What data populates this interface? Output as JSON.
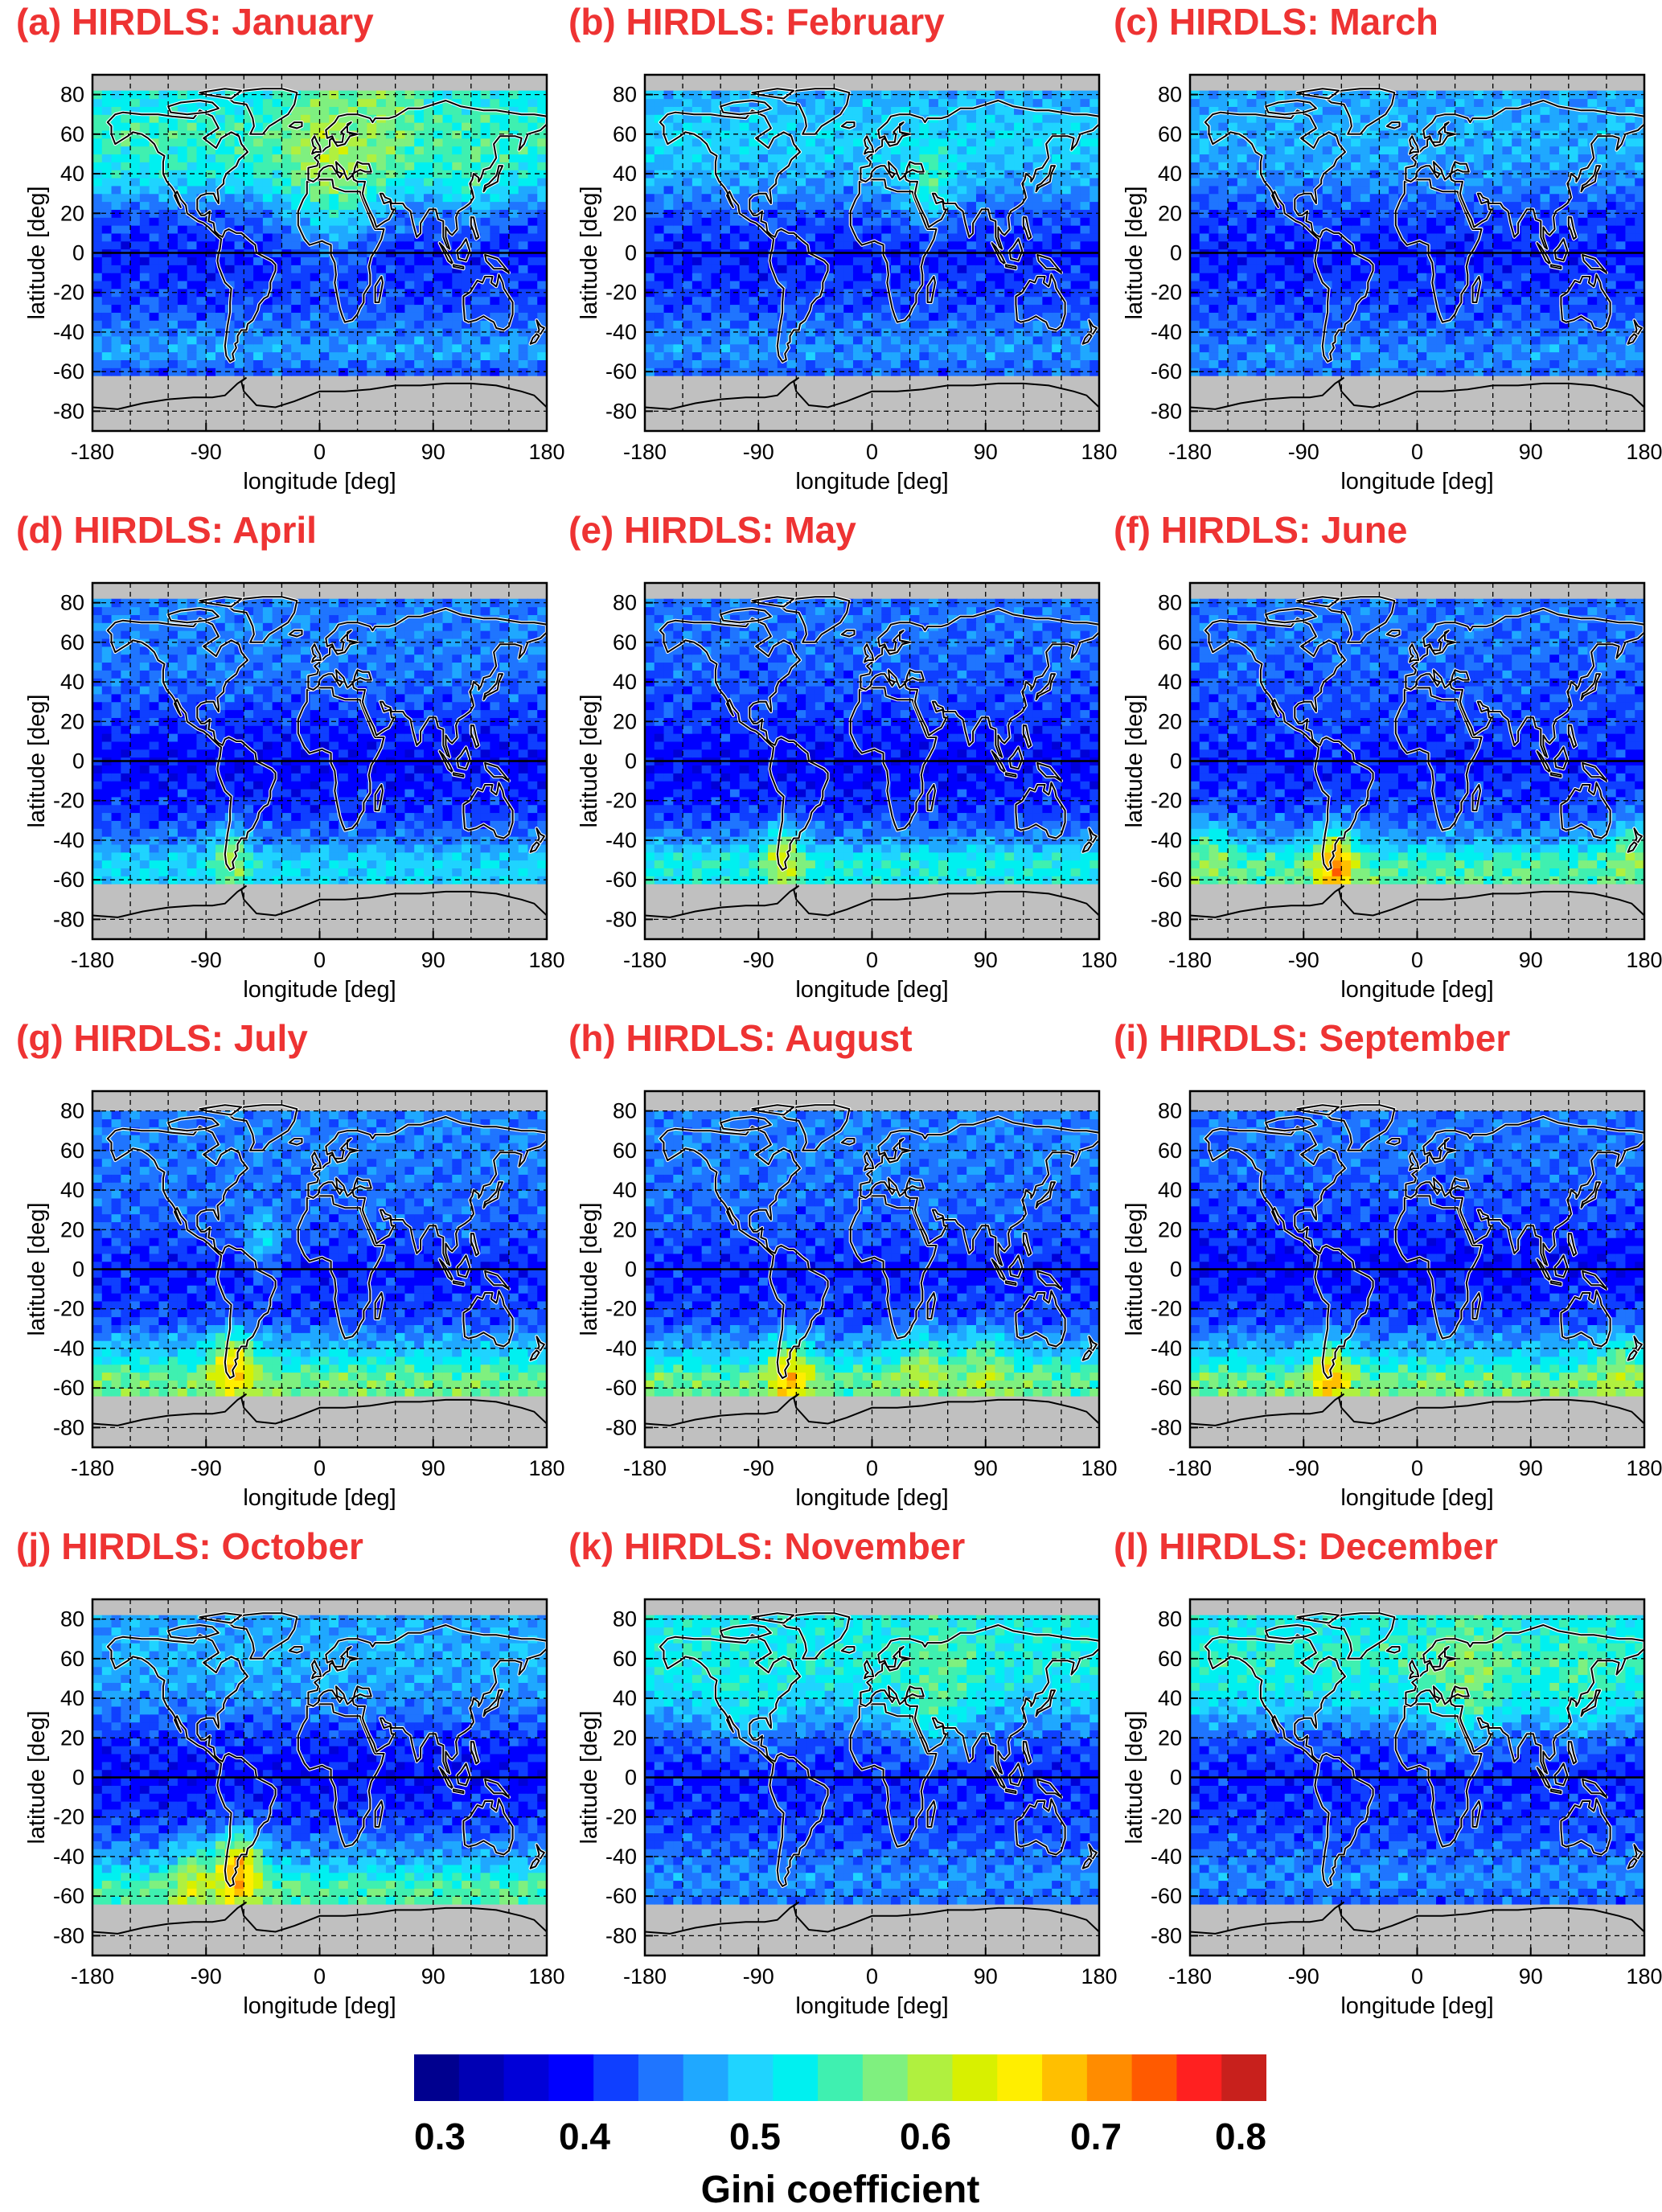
{
  "chart_data": {
    "type": "heatmap",
    "product": "HIRDLS",
    "xlabel": "longitude [deg]",
    "ylabel": "latitude [deg]",
    "xlim": [
      -180,
      180
    ],
    "ylim": [
      -90,
      90
    ],
    "xticks": [
      "-180",
      "-90",
      "0",
      "90",
      "180"
    ],
    "yticks": [
      "80",
      "60",
      "40",
      "20",
      "0",
      "-20",
      "-40",
      "-60",
      "-80"
    ],
    "grid": true,
    "no_data_color": "#c0c0c0",
    "colorbar": {
      "label": "Gini coefficient",
      "min": 0.3,
      "max": 0.8,
      "tick_labels": [
        "0.3",
        "0.4",
        "0.5",
        "0.6",
        "0.7",
        "0.8"
      ],
      "colors": [
        "#00008f",
        "#0000b4",
        "#0000d8",
        "#0000ff",
        "#0f3fff",
        "#1f75ff",
        "#1fa8ff",
        "#1fd4ff",
        "#00f0f0",
        "#3ff0b0",
        "#7ff07f",
        "#b0f03f",
        "#d8f000",
        "#ffee00",
        "#ffbf00",
        "#ff8c00",
        "#ff5a00",
        "#ff2020",
        "#c8201c"
      ]
    },
    "panels": [
      {
        "title": "(a) HIRDLS: January",
        "month": "January",
        "valid_lat": [
          -62,
          82
        ],
        "bands": [
          [
            -62,
            0.42
          ],
          [
            -50,
            0.47
          ],
          [
            -40,
            0.45
          ],
          [
            -25,
            0.42
          ],
          [
            0,
            0.4
          ],
          [
            20,
            0.43
          ],
          [
            40,
            0.52
          ],
          [
            60,
            0.55
          ],
          [
            75,
            0.52
          ]
        ],
        "hotspots": [
          [
            10,
            52,
            0.6,
            28
          ],
          [
            50,
            70,
            0.58,
            20
          ],
          [
            120,
            52,
            0.55,
            20
          ]
        ]
      },
      {
        "title": "(b) HIRDLS: February",
        "month": "February",
        "valid_lat": [
          -62,
          82
        ],
        "bands": [
          [
            -62,
            0.43
          ],
          [
            -50,
            0.46
          ],
          [
            -40,
            0.45
          ],
          [
            -25,
            0.42
          ],
          [
            0,
            0.4
          ],
          [
            20,
            0.43
          ],
          [
            40,
            0.48
          ],
          [
            60,
            0.5
          ],
          [
            75,
            0.48
          ]
        ],
        "hotspots": [
          [
            45,
            38,
            0.55,
            14
          ]
        ]
      },
      {
        "title": "(c) HIRDLS: March",
        "month": "March",
        "valid_lat": [
          -62,
          82
        ],
        "bands": [
          [
            -62,
            0.44
          ],
          [
            -50,
            0.46
          ],
          [
            -40,
            0.44
          ],
          [
            -25,
            0.42
          ],
          [
            0,
            0.4
          ],
          [
            20,
            0.42
          ],
          [
            40,
            0.46
          ],
          [
            60,
            0.48
          ],
          [
            75,
            0.47
          ]
        ],
        "hotspots": []
      },
      {
        "title": "(d) HIRDLS: April",
        "month": "April",
        "valid_lat": [
          -62,
          82
        ],
        "bands": [
          [
            -62,
            0.5
          ],
          [
            -50,
            0.5
          ],
          [
            -40,
            0.45
          ],
          [
            -25,
            0.41
          ],
          [
            0,
            0.39
          ],
          [
            20,
            0.41
          ],
          [
            40,
            0.44
          ],
          [
            60,
            0.45
          ],
          [
            75,
            0.45
          ]
        ],
        "hotspots": [
          [
            -70,
            -50,
            0.6,
            10
          ]
        ]
      },
      {
        "title": "(e) HIRDLS: May",
        "month": "May",
        "valid_lat": [
          -62,
          82
        ],
        "bands": [
          [
            -62,
            0.52
          ],
          [
            -50,
            0.53
          ],
          [
            -40,
            0.46
          ],
          [
            -25,
            0.41
          ],
          [
            0,
            0.39
          ],
          [
            20,
            0.41
          ],
          [
            40,
            0.43
          ],
          [
            60,
            0.44
          ],
          [
            75,
            0.44
          ]
        ],
        "hotspots": [
          [
            -70,
            -50,
            0.63,
            11
          ]
        ]
      },
      {
        "title": "(f) HIRDLS: June",
        "month": "June",
        "valid_lat": [
          -62,
          82
        ],
        "bands": [
          [
            -62,
            0.56
          ],
          [
            -50,
            0.55
          ],
          [
            -40,
            0.47
          ],
          [
            -25,
            0.42
          ],
          [
            0,
            0.4
          ],
          [
            20,
            0.42
          ],
          [
            40,
            0.43
          ],
          [
            60,
            0.44
          ],
          [
            75,
            0.44
          ]
        ],
        "hotspots": [
          [
            -65,
            -52,
            0.72,
            11
          ],
          [
            -165,
            -53,
            0.58,
            14
          ],
          [
            170,
            -52,
            0.58,
            14
          ]
        ]
      },
      {
        "title": "(g) HIRDLS: July",
        "month": "July",
        "valid_lat": [
          -64,
          80
        ],
        "bands": [
          [
            -64,
            0.57
          ],
          [
            -55,
            0.57
          ],
          [
            -42,
            0.5
          ],
          [
            -25,
            0.42
          ],
          [
            0,
            0.4
          ],
          [
            20,
            0.43
          ],
          [
            40,
            0.44
          ],
          [
            60,
            0.45
          ],
          [
            75,
            0.45
          ]
        ],
        "hotspots": [
          [
            -68,
            -50,
            0.68,
            12
          ],
          [
            -45,
            15,
            0.5,
            10
          ]
        ]
      },
      {
        "title": "(h) HIRDLS: August",
        "month": "August",
        "valid_lat": [
          -64,
          80
        ],
        "bands": [
          [
            -64,
            0.56
          ],
          [
            -55,
            0.57
          ],
          [
            -42,
            0.49
          ],
          [
            -25,
            0.42
          ],
          [
            0,
            0.4
          ],
          [
            20,
            0.43
          ],
          [
            40,
            0.44
          ],
          [
            60,
            0.45
          ],
          [
            75,
            0.45
          ]
        ],
        "hotspots": [
          [
            -65,
            -55,
            0.68,
            12
          ],
          [
            40,
            -55,
            0.6,
            14
          ],
          [
            90,
            -55,
            0.6,
            14
          ]
        ]
      },
      {
        "title": "(i) HIRDLS: September",
        "month": "September",
        "valid_lat": [
          -64,
          80
        ],
        "bands": [
          [
            -64,
            0.57
          ],
          [
            -55,
            0.57
          ],
          [
            -42,
            0.49
          ],
          [
            -25,
            0.42
          ],
          [
            0,
            0.39
          ],
          [
            20,
            0.41
          ],
          [
            40,
            0.43
          ],
          [
            60,
            0.44
          ],
          [
            75,
            0.44
          ]
        ],
        "hotspots": [
          [
            -68,
            -55,
            0.68,
            11
          ],
          [
            160,
            -57,
            0.6,
            14
          ]
        ]
      },
      {
        "title": "(j) HIRDLS: October",
        "month": "October",
        "valid_lat": [
          -64,
          82
        ],
        "bands": [
          [
            -64,
            0.55
          ],
          [
            -55,
            0.56
          ],
          [
            -42,
            0.48
          ],
          [
            -25,
            0.42
          ],
          [
            0,
            0.39
          ],
          [
            20,
            0.41
          ],
          [
            40,
            0.46
          ],
          [
            60,
            0.48
          ],
          [
            75,
            0.47
          ]
        ],
        "hotspots": [
          [
            -65,
            -48,
            0.7,
            13
          ],
          [
            -100,
            -55,
            0.62,
            12
          ]
        ]
      },
      {
        "title": "(k) HIRDLS: November",
        "month": "November",
        "valid_lat": [
          -64,
          82
        ],
        "bands": [
          [
            -64,
            0.44
          ],
          [
            -50,
            0.46
          ],
          [
            -40,
            0.44
          ],
          [
            -25,
            0.42
          ],
          [
            0,
            0.4
          ],
          [
            20,
            0.43
          ],
          [
            40,
            0.5
          ],
          [
            60,
            0.53
          ],
          [
            75,
            0.52
          ]
        ],
        "hotspots": [
          [
            50,
            50,
            0.56,
            22
          ],
          [
            -100,
            52,
            0.53,
            20
          ]
        ]
      },
      {
        "title": "(l) HIRDLS: December",
        "month": "December",
        "valid_lat": [
          -64,
          82
        ],
        "bands": [
          [
            -64,
            0.43
          ],
          [
            -50,
            0.46
          ],
          [
            -40,
            0.44
          ],
          [
            -25,
            0.42
          ],
          [
            0,
            0.4
          ],
          [
            20,
            0.43
          ],
          [
            40,
            0.51
          ],
          [
            60,
            0.54
          ],
          [
            75,
            0.52
          ]
        ],
        "hotspots": [
          [
            40,
            55,
            0.58,
            22
          ],
          [
            130,
            55,
            0.55,
            18
          ]
        ]
      }
    ]
  }
}
